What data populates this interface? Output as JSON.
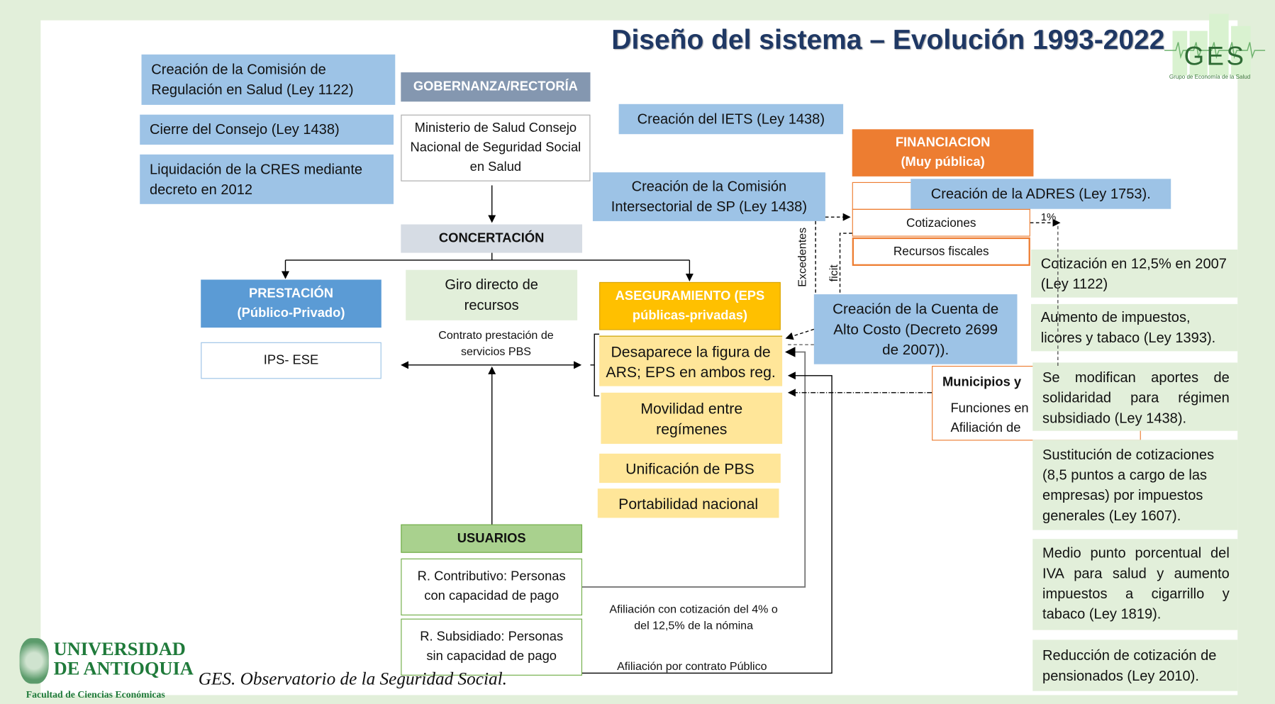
{
  "title": "Diseño del sistema – Evolución 1993-2022",
  "ges_logo": {
    "text": "GES",
    "subtitle": "Grupo de Economía de la Salud"
  },
  "left_notes": [
    "Creación de la Comisión de Regulación en Salud (Ley 1122)",
    "Cierre  del Consejo (Ley 1438)",
    "Liquidación de la CRES mediante decreto en 2012"
  ],
  "gobernanza": {
    "header": "GOBERNANZA/RECTORÍA",
    "body": "Ministerio de Salud Consejo Nacional de Seguridad Social en Salud"
  },
  "concertacion": "CONCERTACIÓN",
  "prestacion": {
    "header": "PRESTACIÓN (Público-Privado)",
    "body": "IPS- ESE"
  },
  "giro": "Giro directo de recursos",
  "contrato": "Contrato prestación de servicios PBS",
  "aseguramiento": {
    "header": "ASEGURAMIENTO (EPS públicas-privadas)",
    "items": [
      "Desaparece la figura de ARS; EPS en ambos reg.",
      "Movilidad entre regímenes",
      "Unificación de PBS",
      "Portabilidad nacional"
    ]
  },
  "iets": "Creación del IETS (Ley 1438)",
  "comision_sp": "Creación de la Comisión Intersectorial de SP (Ley 1438)",
  "financiacion": {
    "header": "FINANCIACION (Muy pública)",
    "adres": "Creación de la ADRES (Ley 1753).",
    "rows": [
      "Cotizaciones",
      "Recursos fiscales"
    ],
    "pct": "1%"
  },
  "excedentes": "Excedentes",
  "deficit": "ficit",
  "cac": "Creación de la Cuenta de Alto Costo (Decreto 2699 de 2007)).",
  "municipios": {
    "title": "Municipios y",
    "lines": [
      "Funciones en",
      "Afiliación de"
    ]
  },
  "right_notes": [
    "Cotización en 12,5% en 2007 (Ley 1122)",
    "Aumento de impuestos, licores y tabaco (Ley 1393).",
    "Se modifican aportes de solidaridad para régimen subsidiado (Ley 1438).",
    "Sustitución de cotizaciones (8,5 puntos a cargo de las empresas) por impuestos generales (Ley 1607).",
    "Medio punto porcentual del IVA para salud y aumento impuestos a cigarrillo y tabaco (Ley 1819).",
    "Reducción de cotización de pensionados (Ley 2010)."
  ],
  "usuarios": {
    "header": "USUARIOS",
    "contributivo": "R. Contributivo: Personas con capacidad de pago",
    "subsidiado": "R. Subsidiado: Personas sin capacidad de pago"
  },
  "afiliacion_cotizacion": "Afiliación con cotización del 4% o del 12,5% de la nómina",
  "afiliacion_contrato": "Afiliación por contrato Público",
  "footer": {
    "udea_line1": "UNIVERSIDAD",
    "udea_line2": "DE ANTIOQUIA",
    "udea_line3": "Facultad de Ciencias Económicas",
    "observatorio": "GES. Observatorio de la Seguridad Social."
  },
  "colors": {
    "title": "#1f3864",
    "blue": "#9dc3e6",
    "prestacion": "#5b9bd5",
    "aseguramiento": "#ffc000",
    "yellow_light": "#ffe699",
    "financiacion": "#ed7d31",
    "usuarios": "#a9d18e",
    "green_light": "#e2efda",
    "gobernanza": "#8497b0",
    "concertacion": "#d6dce4"
  }
}
